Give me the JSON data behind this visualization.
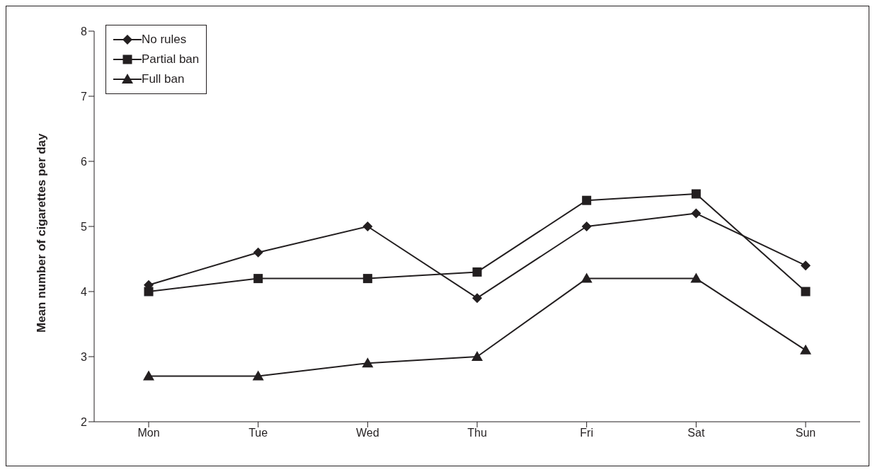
{
  "chart_data": {
    "type": "line",
    "ylabel": "Mean number of cigarettes per day",
    "categories": [
      "Mon",
      "Tue",
      "Wed",
      "Thu",
      "Fri",
      "Sat",
      "Sun"
    ],
    "series": [
      {
        "name": "No rules",
        "color": "#231f20",
        "marker": "diamond",
        "values": [
          4.1,
          4.6,
          5.0,
          3.9,
          5.0,
          5.2,
          4.4
        ]
      },
      {
        "name": "Partial ban",
        "color": "#231f20",
        "marker": "square",
        "values": [
          4.0,
          4.2,
          4.2,
          4.3,
          5.4,
          5.5,
          4.0
        ]
      },
      {
        "name": "Full ban",
        "color": "#231f20",
        "marker": "triangle",
        "values": [
          2.7,
          2.7,
          2.9,
          3.0,
          4.2,
          4.2,
          3.1
        ]
      }
    ],
    "ylim": [
      2,
      8
    ],
    "yticks": [
      2,
      3,
      4,
      5,
      6,
      7,
      8
    ],
    "grid": false,
    "legend": "top left",
    "line_style": "solid"
  }
}
